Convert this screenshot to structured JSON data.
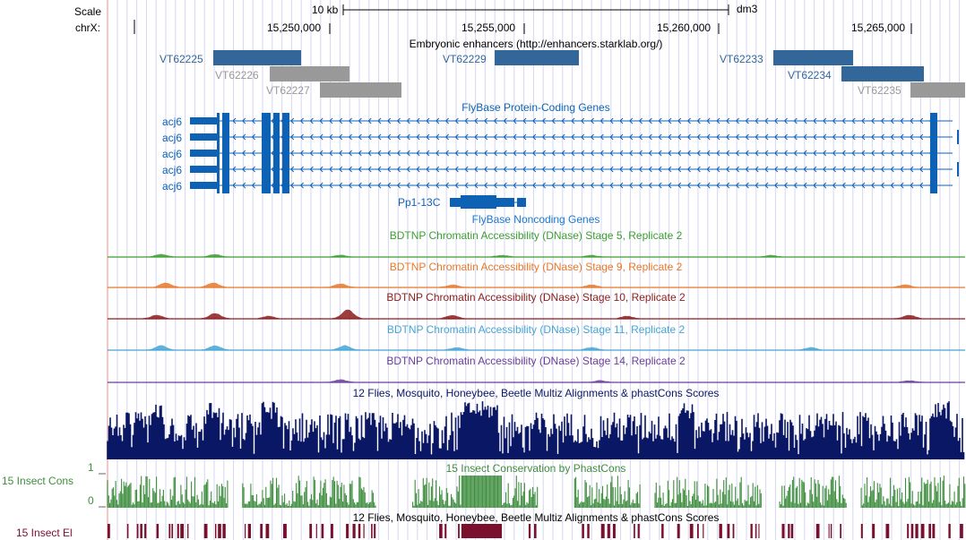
{
  "ruler": {
    "scale_label": "Scale",
    "chrom_label": "chrX:",
    "scale_text": "10 kb",
    "assembly": "dm3",
    "ticks": [
      "15,250,000",
      "15,255,000",
      "15,260,000",
      "15,265,000"
    ]
  },
  "enhancers": {
    "title": "Embryonic enhancers (http://enhancers.starklab.org/)",
    "items": [
      {
        "label": "VT62225",
        "color": "#336699"
      },
      {
        "label": "VT62226",
        "color": "#999999"
      },
      {
        "label": "VT62227",
        "color": "#999999"
      },
      {
        "label": "VT62229",
        "color": "#336699"
      },
      {
        "label": "VT62233",
        "color": "#336699"
      },
      {
        "label": "VT62234",
        "color": "#336699"
      },
      {
        "label": "VT62235",
        "color": "#999999"
      }
    ]
  },
  "protein_genes": {
    "title": "FlyBase Protein-Coding Genes",
    "color": "#0D62B6",
    "names": [
      "acj6",
      "acj6",
      "acj6",
      "acj6",
      "acj6"
    ]
  },
  "noncoding_genes": {
    "gene": "Pp1-13C",
    "title": "FlyBase Noncoding Genes",
    "color": "#0D62B6"
  },
  "dnase": [
    {
      "title": "BDTNP Chromatin Accessibility (DNase) Stage 5, Replicate 2",
      "color": "#3C9E32"
    },
    {
      "title": "BDTNP Chromatin Accessibility (DNase) Stage 9, Replicate 2",
      "color": "#E8782B"
    },
    {
      "title": "BDTNP Chromatin Accessibility (DNase) Stage 10, Replicate 2",
      "color": "#8B1C1C"
    },
    {
      "title": "BDTNP Chromatin Accessibility (DNase) Stage 11, Replicate 2",
      "color": "#45A5D3"
    },
    {
      "title": "BDTNP Chromatin Accessibility (DNase) Stage 14, Replicate 2",
      "color": "#6A3D9A"
    }
  ],
  "multiz": {
    "title": "12 Flies, Mosquito, Honeybee, Beetle Multiz Alignments & phastCons Scores",
    "color": "#0A1765"
  },
  "phastcons": {
    "title": "15 Insect Conservation by PhastCons",
    "side_label": "15 Insect Cons",
    "axis_top": "1",
    "axis_bottom": "0",
    "color": "#3E8E3E"
  },
  "elements": {
    "title": "12 Flies, Mosquito, Honeybee, Beetle Multiz Alignments & phastCons Scores",
    "side_label": "15 Insect El",
    "color": "#7A0F2E"
  },
  "colors": {
    "grid": "#D6D6F2",
    "left_border": "#F0B4B4"
  }
}
